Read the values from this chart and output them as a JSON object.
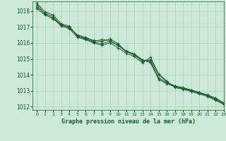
{
  "title": "Graphe pression niveau de la mer (hPa)",
  "background_color": "#cce8d8",
  "grid_color": "#aacfbc",
  "line_color": "#1a5c2a",
  "marker_color": "#1a5c2a",
  "xlim": [
    -0.5,
    23
  ],
  "ylim": [
    1011.8,
    1018.6
  ],
  "yticks": [
    1012,
    1013,
    1014,
    1015,
    1016,
    1017,
    1018
  ],
  "xticks": [
    0,
    1,
    2,
    3,
    4,
    5,
    6,
    7,
    8,
    9,
    10,
    11,
    12,
    13,
    14,
    15,
    16,
    17,
    18,
    19,
    20,
    21,
    22,
    23
  ],
  "series": [
    [
      1018.25,
      1017.85,
      1017.65,
      1017.1,
      1017.0,
      1016.45,
      1016.3,
      1016.1,
      1016.2,
      1016.15,
      1015.85,
      1015.45,
      1015.3,
      1014.95,
      1014.75,
      1013.7,
      1013.45,
      1013.25,
      1013.15,
      1013.05,
      1012.9,
      1012.75,
      1012.55,
      1012.25
    ],
    [
      1018.4,
      1017.8,
      1017.5,
      1017.15,
      1016.95,
      1016.5,
      1016.35,
      1016.15,
      1016.1,
      1016.25,
      1015.95,
      1015.45,
      1015.25,
      1014.85,
      1014.95,
      1014.0,
      1013.55,
      1013.3,
      1013.2,
      1013.05,
      1012.9,
      1012.7,
      1012.5,
      1012.2
    ],
    [
      1018.5,
      1017.95,
      1017.75,
      1017.2,
      1017.05,
      1016.4,
      1016.25,
      1016.05,
      1015.95,
      1016.1,
      1015.85,
      1015.5,
      1015.3,
      1014.9,
      1014.85,
      1013.8,
      1013.5,
      1013.3,
      1013.15,
      1013.0,
      1012.85,
      1012.7,
      1012.45,
      1012.2
    ],
    [
      1018.15,
      1017.75,
      1017.55,
      1017.05,
      1016.9,
      1016.35,
      1016.2,
      1016.0,
      1015.85,
      1016.0,
      1015.7,
      1015.35,
      1015.15,
      1014.75,
      1015.1,
      1014.05,
      1013.6,
      1013.2,
      1013.1,
      1012.95,
      1012.8,
      1012.65,
      1012.4,
      1012.15
    ]
  ]
}
